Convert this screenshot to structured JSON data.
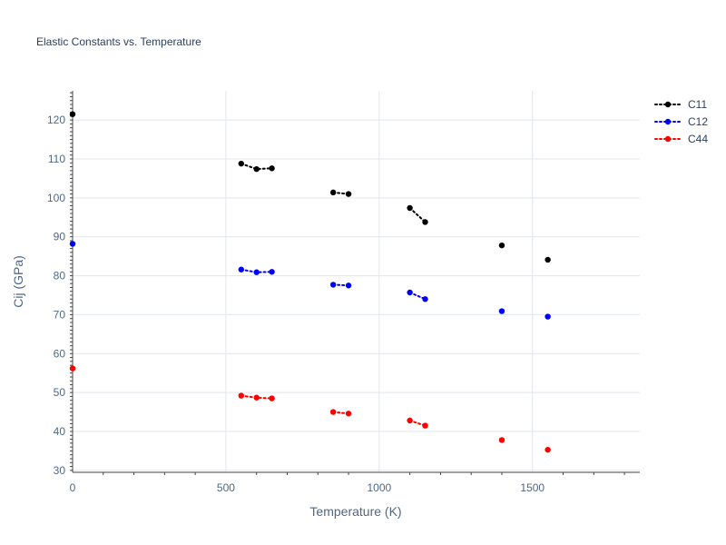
{
  "chart_data": {
    "type": "scatter",
    "title": "Elastic Constants vs. Temperature",
    "xlabel": "Temperature (K)",
    "ylabel": "Cij (GPa)",
    "xlim": [
      0,
      1850
    ],
    "ylim": [
      29.5,
      127.5
    ],
    "x_ticks": [
      0,
      500,
      1000,
      1500
    ],
    "y_ticks": [
      30,
      40,
      50,
      60,
      70,
      80,
      90,
      100,
      110,
      120
    ],
    "grid": true,
    "legend_position": "top-right",
    "series": [
      {
        "name": "C11",
        "color": "#000000",
        "line_style": "dotted",
        "segments": [
          [
            {
              "x": 0,
              "y": 121.5
            }
          ],
          [
            {
              "x": 550,
              "y": 108.8
            },
            {
              "x": 600,
              "y": 107.4
            },
            {
              "x": 650,
              "y": 107.6
            }
          ],
          [
            {
              "x": 850,
              "y": 101.4
            },
            {
              "x": 900,
              "y": 101.0
            }
          ],
          [
            {
              "x": 1100,
              "y": 97.4
            },
            {
              "x": 1150,
              "y": 93.8
            }
          ],
          [
            {
              "x": 1400,
              "y": 87.8
            }
          ],
          [
            {
              "x": 1550,
              "y": 84.1
            }
          ]
        ]
      },
      {
        "name": "C12",
        "color": "#0000ff",
        "line_style": "dotted",
        "segments": [
          [
            {
              "x": 0,
              "y": 88.2
            }
          ],
          [
            {
              "x": 550,
              "y": 81.6
            },
            {
              "x": 600,
              "y": 80.9
            },
            {
              "x": 650,
              "y": 81.0
            }
          ],
          [
            {
              "x": 850,
              "y": 77.7
            },
            {
              "x": 900,
              "y": 77.5
            }
          ],
          [
            {
              "x": 1100,
              "y": 75.7
            },
            {
              "x": 1150,
              "y": 74.0
            }
          ],
          [
            {
              "x": 1400,
              "y": 70.9
            }
          ],
          [
            {
              "x": 1550,
              "y": 69.5
            }
          ]
        ]
      },
      {
        "name": "C44",
        "color": "#ff0000",
        "line_style": "dotted",
        "segments": [
          [
            {
              "x": 0,
              "y": 56.2
            }
          ],
          [
            {
              "x": 550,
              "y": 49.2
            },
            {
              "x": 600,
              "y": 48.7
            },
            {
              "x": 650,
              "y": 48.5
            }
          ],
          [
            {
              "x": 850,
              "y": 45.0
            },
            {
              "x": 900,
              "y": 44.6
            }
          ],
          [
            {
              "x": 1100,
              "y": 42.8
            },
            {
              "x": 1150,
              "y": 41.5
            }
          ],
          [
            {
              "x": 1400,
              "y": 37.8
            }
          ],
          [
            {
              "x": 1550,
              "y": 35.3
            }
          ]
        ]
      }
    ]
  }
}
